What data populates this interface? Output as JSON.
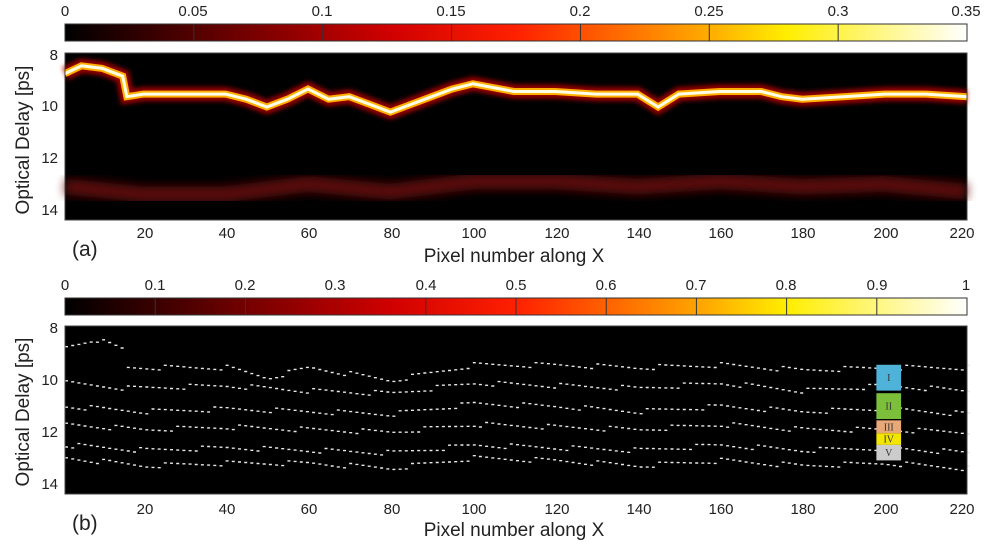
{
  "chart_data": [
    {
      "type": "heatmap",
      "panel_label": "(a)",
      "xlabel": "Pixel number along X",
      "ylabel": "Optical Delay [ps]",
      "xlim": [
        1,
        220
      ],
      "ylim": [
        8,
        14.5
      ],
      "x_ticks": [
        20,
        40,
        60,
        80,
        100,
        120,
        140,
        160,
        180,
        200,
        220
      ],
      "y_ticks": [
        8,
        10,
        12,
        14
      ],
      "colorbar": {
        "range": [
          0,
          0.35
        ],
        "ticks": [
          "0",
          "0.05",
          "0.1",
          "0.15",
          "0.2",
          "0.25",
          "0.3",
          "0.35"
        ],
        "colormap": "hot"
      },
      "series": [
        {
          "x": [
            1,
            5,
            10,
            15,
            16,
            20,
            30,
            40,
            45,
            50,
            55,
            60,
            65,
            70,
            75,
            80,
            85,
            90,
            95,
            100,
            110,
            120,
            130,
            140,
            145,
            150,
            160,
            170,
            175,
            180,
            190,
            200,
            210,
            220
          ],
          "values": [
            8.8,
            8.5,
            8.6,
            8.9,
            9.7,
            9.6,
            9.6,
            9.6,
            9.8,
            10.1,
            9.8,
            9.4,
            9.8,
            9.7,
            10.0,
            10.3,
            10.0,
            9.7,
            9.4,
            9.2,
            9.5,
            9.5,
            9.6,
            9.6,
            10.1,
            9.6,
            9.5,
            9.5,
            9.7,
            9.8,
            9.7,
            9.6,
            9.6,
            9.7
          ],
          "intensity": 0.35
        },
        {
          "x": [
            1,
            20,
            40,
            60,
            80,
            100,
            120,
            140,
            160,
            180,
            200,
            220
          ],
          "values": [
            13.2,
            13.5,
            13.5,
            13.1,
            13.4,
            13.0,
            13.0,
            13.2,
            13.0,
            13.2,
            13.1,
            13.4
          ],
          "intensity": 0.08
        }
      ]
    },
    {
      "type": "heatmap",
      "panel_label": "(b)",
      "xlabel": "Pixel number along X",
      "ylabel": "Optical Delay [ps]",
      "xlim": [
        1,
        220
      ],
      "ylim": [
        8,
        14.5
      ],
      "x_ticks": [
        20,
        40,
        60,
        80,
        100,
        120,
        140,
        160,
        180,
        200,
        220
      ],
      "y_ticks": [
        8,
        10,
        12,
        14
      ],
      "colorbar": {
        "range": [
          0,
          1
        ],
        "ticks": [
          "0",
          "0.1",
          "0.2",
          "0.3",
          "0.4",
          "0.5",
          "0.6",
          "0.7",
          "0.8",
          "0.9",
          "1"
        ],
        "colormap": "hot"
      },
      "series": [
        {
          "x": [
            1,
            8,
            15,
            16,
            40,
            50,
            60,
            80,
            100,
            120,
            140,
            160,
            180,
            200,
            220
          ],
          "values": [
            8.8,
            8.5,
            8.9,
            9.6,
            9.6,
            10.0,
            9.6,
            10.1,
            9.5,
            9.5,
            9.6,
            9.5,
            9.7,
            9.6,
            9.6
          ]
        },
        {
          "x": [
            1,
            16,
            40,
            60,
            80,
            100,
            120,
            140,
            160,
            180,
            200,
            220
          ],
          "values": [
            10.2,
            10.4,
            10.3,
            10.5,
            10.6,
            10.2,
            10.3,
            10.4,
            10.2,
            10.5,
            10.3,
            10.5
          ]
        },
        {
          "x": [
            1,
            20,
            40,
            60,
            80,
            100,
            120,
            140,
            160,
            180,
            200,
            220
          ],
          "values": [
            11.1,
            11.3,
            11.2,
            11.3,
            11.4,
            11.0,
            11.1,
            11.3,
            11.1,
            11.3,
            11.2,
            11.4
          ]
        },
        {
          "x": [
            1,
            20,
            40,
            60,
            80,
            100,
            120,
            140,
            160,
            180,
            200,
            220
          ],
          "values": [
            11.8,
            12.0,
            11.9,
            12.0,
            12.1,
            11.8,
            11.9,
            12.0,
            11.8,
            12.0,
            12.0,
            12.1
          ]
        },
        {
          "x": [
            1,
            20,
            40,
            60,
            80,
            100,
            120,
            140,
            160,
            180,
            200,
            220
          ],
          "values": [
            12.6,
            12.8,
            12.7,
            12.8,
            12.9,
            12.6,
            12.7,
            12.8,
            12.6,
            12.8,
            12.7,
            12.9
          ]
        },
        {
          "x": [
            1,
            20,
            40,
            60,
            80,
            100,
            120,
            140,
            160,
            180,
            200,
            220
          ],
          "values": [
            13.1,
            13.4,
            13.3,
            13.3,
            13.5,
            13.1,
            13.2,
            13.4,
            13.2,
            13.4,
            13.3,
            13.5
          ]
        }
      ],
      "legend": {
        "placement": "right",
        "items": [
          {
            "label": "I",
            "color": "#4fb3d9",
            "y_range": [
              9.5,
              10.5
            ]
          },
          {
            "label": "II",
            "color": "#7cbf3a",
            "y_range": [
              10.6,
              11.6
            ]
          },
          {
            "label": "III",
            "color": "#e8a878",
            "y_range": [
              11.65,
              12.15
            ]
          },
          {
            "label": "IV",
            "color": "#f2e600",
            "y_range": [
              12.15,
              12.6
            ]
          },
          {
            "label": "V",
            "color": "#cccccc",
            "y_range": [
              12.6,
              13.2
            ]
          }
        ]
      }
    }
  ]
}
